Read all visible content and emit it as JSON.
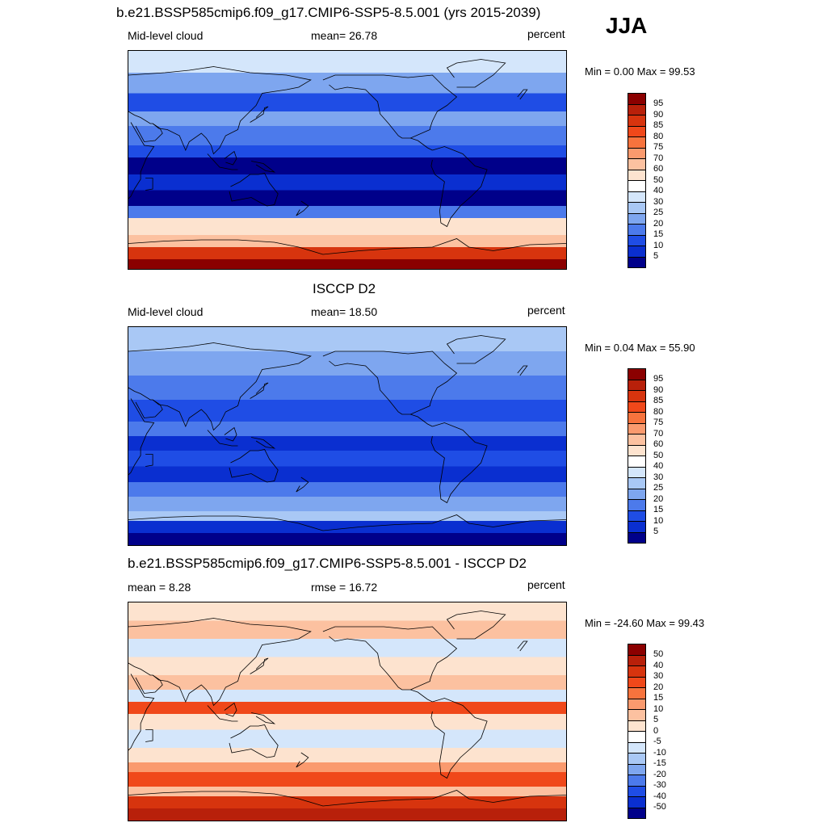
{
  "season": "JJA",
  "panels": [
    {
      "title": "b.e21.BSSP585cmip6.f09_g17.CMIP6-SSP5-8.5.001 (yrs 2015-2039)",
      "left_label": "Mid-level cloud",
      "center_label": "mean=  26.78",
      "units": "percent",
      "minmax": "Min =   0.00 Max =  99.53",
      "colorbar": {
        "ticks": [
          "95",
          "90",
          "85",
          "80",
          "75",
          "70",
          "60",
          "50",
          "40",
          "30",
          "25",
          "20",
          "15",
          "10",
          "5"
        ],
        "colors": [
          "#8b0000",
          "#b8200a",
          "#d7340e",
          "#f0481a",
          "#f7733d",
          "#fa9a6e",
          "#fcc1a0",
          "#fde3cf",
          "#ffffff",
          "#d4e6fb",
          "#a9c8f5",
          "#7ea6ef",
          "#4c7aeb",
          "#1f4de5",
          "#0a2fd0",
          "#00008a"
        ]
      },
      "map_zones": [
        {
          "lat": 90,
          "color": "#d4e6fb"
        },
        {
          "lat": 72,
          "color": "#7ea6ef"
        },
        {
          "lat": 55,
          "color": "#1f4de5"
        },
        {
          "lat": 40,
          "color": "#7ea6ef"
        },
        {
          "lat": 28,
          "color": "#4c7aeb"
        },
        {
          "lat": 12,
          "color": "#1f4de5"
        },
        {
          "lat": 2,
          "color": "#00008a"
        },
        {
          "lat": -12,
          "color": "#0a2fd0"
        },
        {
          "lat": -25,
          "color": "#00008a"
        },
        {
          "lat": -38,
          "color": "#4c7aeb"
        },
        {
          "lat": -48,
          "color": "#fde3cf"
        },
        {
          "lat": -62,
          "color": "#fcc1a0"
        },
        {
          "lat": -72,
          "color": "#d7340e"
        },
        {
          "lat": -82,
          "color": "#8b0000"
        }
      ]
    },
    {
      "title": "ISCCP D2",
      "left_label": "Mid-level cloud",
      "center_label": "mean=  18.50",
      "units": "percent",
      "minmax": "Min =   0.04 Max =  55.90",
      "colorbar": {
        "ticks": [
          "95",
          "90",
          "85",
          "80",
          "75",
          "70",
          "60",
          "50",
          "40",
          "30",
          "25",
          "20",
          "15",
          "10",
          "5"
        ],
        "colors": [
          "#8b0000",
          "#b8200a",
          "#d7340e",
          "#f0481a",
          "#f7733d",
          "#fa9a6e",
          "#fcc1a0",
          "#fde3cf",
          "#ffffff",
          "#d4e6fb",
          "#a9c8f5",
          "#7ea6ef",
          "#4c7aeb",
          "#1f4de5",
          "#0a2fd0",
          "#00008a"
        ]
      },
      "map_zones": [
        {
          "lat": 90,
          "color": "#a9c8f5"
        },
        {
          "lat": 70,
          "color": "#7ea6ef"
        },
        {
          "lat": 50,
          "color": "#4c7aeb"
        },
        {
          "lat": 30,
          "color": "#1f4de5"
        },
        {
          "lat": 12,
          "color": "#4c7aeb"
        },
        {
          "lat": 0,
          "color": "#0a2fd0"
        },
        {
          "lat": -12,
          "color": "#1f4de5"
        },
        {
          "lat": -25,
          "color": "#0a2fd0"
        },
        {
          "lat": -38,
          "color": "#4c7aeb"
        },
        {
          "lat": -50,
          "color": "#7ea6ef"
        },
        {
          "lat": -62,
          "color": "#a9c8f5"
        },
        {
          "lat": -70,
          "color": "#0a2fd0"
        },
        {
          "lat": -80,
          "color": "#00008a"
        }
      ]
    },
    {
      "title": "b.e21.BSSP585cmip6.f09_g17.CMIP6-SSP5-8.5.001 - ISCCP D2",
      "left_label": "mean =   8.28",
      "center_label": "rmse =  16.72",
      "units": "percent",
      "minmax": "Min = -24.60 Max =  99.43",
      "colorbar": {
        "ticks": [
          "50",
          "40",
          "30",
          "20",
          "15",
          "10",
          "5",
          "0",
          "-5",
          "-10",
          "-15",
          "-20",
          "-30",
          "-40",
          "-50"
        ],
        "colors": [
          "#8b0000",
          "#b8200a",
          "#d7340e",
          "#f0481a",
          "#f7733d",
          "#fa9a6e",
          "#fcc1a0",
          "#fde3cf",
          "#ffffff",
          "#d4e6fb",
          "#a9c8f5",
          "#7ea6ef",
          "#4c7aeb",
          "#1f4de5",
          "#0a2fd0",
          "#00008a"
        ]
      },
      "map_zones": [
        {
          "lat": 90,
          "color": "#fde3cf"
        },
        {
          "lat": 75,
          "color": "#fcc1a0"
        },
        {
          "lat": 60,
          "color": "#d4e6fb"
        },
        {
          "lat": 45,
          "color": "#fde3cf"
        },
        {
          "lat": 30,
          "color": "#fcc1a0"
        },
        {
          "lat": 18,
          "color": "#d4e6fb"
        },
        {
          "lat": 8,
          "color": "#f0481a"
        },
        {
          "lat": -2,
          "color": "#fde3cf"
        },
        {
          "lat": -15,
          "color": "#d4e6fb"
        },
        {
          "lat": -30,
          "color": "#fde3cf"
        },
        {
          "lat": -42,
          "color": "#fa9a6e"
        },
        {
          "lat": -50,
          "color": "#f0481a"
        },
        {
          "lat": -62,
          "color": "#fcc1a0"
        },
        {
          "lat": -70,
          "color": "#d7340e"
        },
        {
          "lat": -80,
          "color": "#b8200a"
        }
      ]
    }
  ]
}
